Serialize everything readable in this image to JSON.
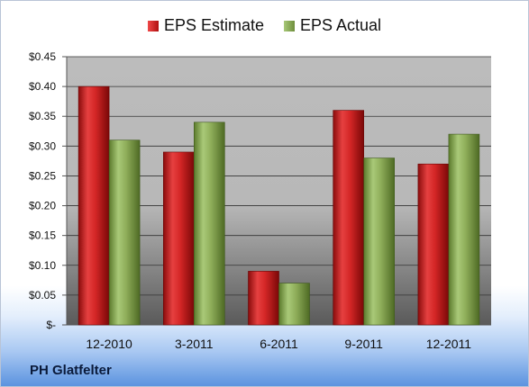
{
  "legend": {
    "estimate_label": "EPS Estimate",
    "actual_label": "EPS Actual"
  },
  "company": "PH Glatfelter",
  "colors": {
    "estimate": "#cc2222",
    "actual": "#8aab55"
  },
  "chart_data": {
    "type": "bar",
    "title": "",
    "xlabel": "",
    "ylabel": "",
    "categories": [
      "12-2010",
      "3-2011",
      "6-2011",
      "9-2011",
      "12-2011"
    ],
    "series": [
      {
        "name": "EPS Estimate",
        "values": [
          0.4,
          0.29,
          0.09,
          0.36,
          0.27
        ]
      },
      {
        "name": "EPS Actual",
        "values": [
          0.31,
          0.34,
          0.07,
          0.28,
          0.32
        ]
      }
    ],
    "ylim": [
      0,
      0.45
    ],
    "yticks": [
      0,
      0.05,
      0.1,
      0.15,
      0.2,
      0.25,
      0.3,
      0.35,
      0.4,
      0.45
    ],
    "ytick_labels": [
      "$-",
      "$0.05",
      "$0.10",
      "$0.15",
      "$0.20",
      "$0.25",
      "$0.30",
      "$0.35",
      "$0.40",
      "$0.45"
    ],
    "grid": true,
    "legend_position": "top-center"
  }
}
